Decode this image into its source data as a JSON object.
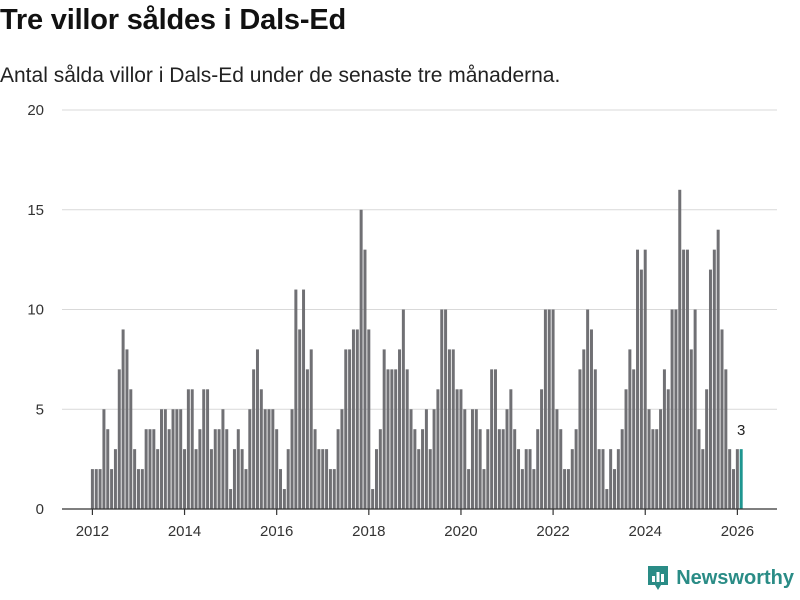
{
  "title": "Tre villor såldes i Dals-Ed",
  "subtitle": "Antal sålda villor i Dals-Ed under de senaste tre månaderna.",
  "brand": {
    "name": "Newsworthy",
    "icon": "newsworthy-logo-icon",
    "color": "#2a8c86"
  },
  "colors": {
    "bar": "#707074",
    "highlight": "#1f9690",
    "grid": "#d9d9d9",
    "axis": "#333333"
  },
  "chart_data": {
    "type": "bar",
    "title": "Tre villor såldes i Dals-Ed",
    "xlabel": "",
    "ylabel": "",
    "x_start": 2012,
    "x_step": 0.08333,
    "ylim": [
      0,
      20
    ],
    "y_ticks": [
      0,
      5,
      10,
      15,
      20
    ],
    "x_ticks": [
      2012,
      2014,
      2016,
      2018,
      2020,
      2022,
      2024,
      2026
    ],
    "values": [
      2,
      2,
      2,
      5,
      4,
      2,
      3,
      7,
      9,
      8,
      6,
      3,
      2,
      2,
      4,
      4,
      4,
      3,
      5,
      5,
      4,
      5,
      5,
      5,
      3,
      6,
      6,
      3,
      4,
      6,
      6,
      3,
      4,
      4,
      5,
      4,
      1,
      3,
      4,
      3,
      2,
      5,
      7,
      8,
      6,
      5,
      5,
      5,
      4,
      2,
      1,
      3,
      5,
      11,
      9,
      11,
      7,
      8,
      4,
      3,
      3,
      3,
      2,
      2,
      4,
      5,
      8,
      8,
      9,
      9,
      15,
      13,
      9,
      1,
      3,
      4,
      8,
      7,
      7,
      7,
      8,
      10,
      7,
      5,
      4,
      3,
      4,
      5,
      3,
      5,
      6,
      10,
      10,
      8,
      8,
      6,
      6,
      5,
      2,
      5,
      5,
      4,
      2,
      4,
      7,
      7,
      4,
      4,
      5,
      6,
      4,
      3,
      2,
      3,
      3,
      2,
      4,
      6,
      10,
      10,
      10,
      5,
      4,
      2,
      2,
      3,
      4,
      7,
      8,
      10,
      9,
      7,
      3,
      3,
      1,
      3,
      2,
      3,
      4,
      6,
      8,
      7,
      13,
      12,
      13,
      5,
      4,
      4,
      5,
      7,
      6,
      10,
      10,
      16,
      13,
      13,
      8,
      10,
      4,
      3,
      6,
      12,
      13,
      14,
      9,
      7,
      3,
      2,
      3,
      3
    ],
    "highlight_index": 169,
    "annotation": "3"
  }
}
